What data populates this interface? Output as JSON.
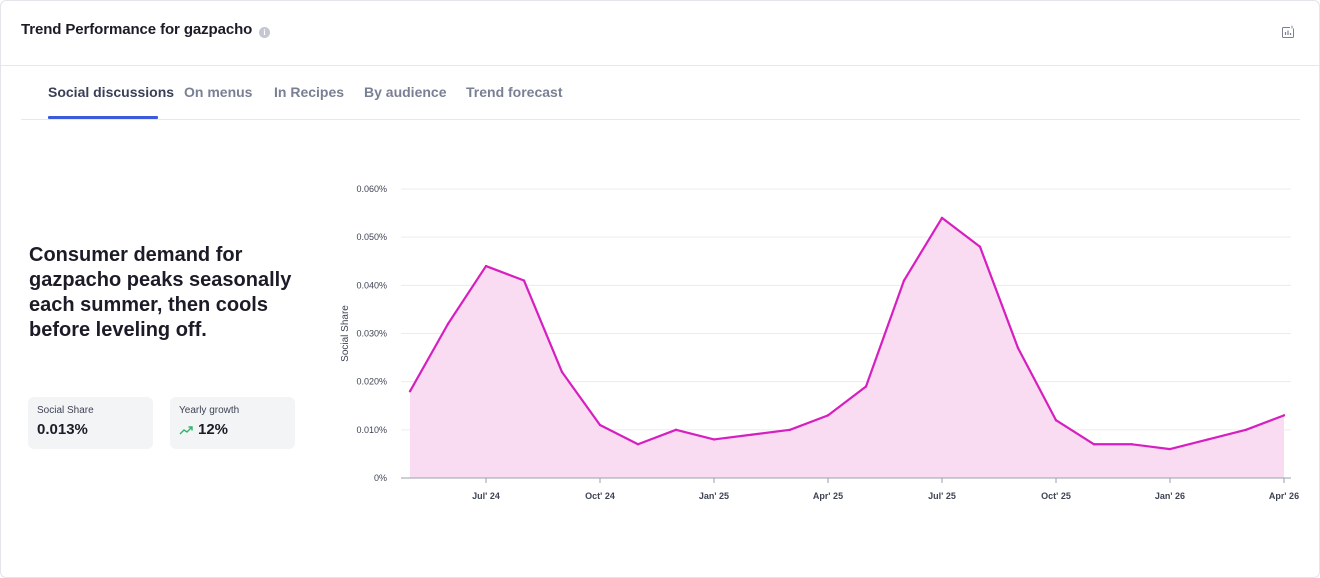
{
  "header": {
    "title": "Trend Performance for gazpacho",
    "info_icon": "info-icon",
    "export_icon": "export-chart-icon"
  },
  "tabs": [
    {
      "label": "Social discussions",
      "active": true
    },
    {
      "label": "On menus",
      "active": false
    },
    {
      "label": "In Recipes",
      "active": false
    },
    {
      "label": "By audience",
      "active": false
    },
    {
      "label": "Trend forecast",
      "active": false
    }
  ],
  "summary": {
    "headline": "Consumer demand for gazpacho peaks seasonally each summer, then cools before leveling off.",
    "stats": [
      {
        "label": "Social Share",
        "value": "0.013%"
      },
      {
        "label": "Yearly growth",
        "value": "12%",
        "trend": "up",
        "trend_color": "#2fb36b"
      }
    ]
  },
  "colors": {
    "accent": "#3b5bdb",
    "line": "#d61fbf",
    "area": "#fadcf2"
  },
  "chart_data": {
    "type": "area",
    "ylabel": "Social Share",
    "ylim": [
      0,
      0.06
    ],
    "yticks": [
      "0%",
      "0.010%",
      "0.020%",
      "0.030%",
      "0.040%",
      "0.050%",
      "0.060%"
    ],
    "xticks": [
      "Jul' 24",
      "Oct' 24",
      "Jan' 25",
      "Apr' 25",
      "Jul' 25",
      "Oct' 25",
      "Jan' 26",
      "Apr' 26"
    ],
    "grid": true,
    "series": [
      {
        "x": [
          "2024-05",
          "2024-06",
          "2024-07",
          "2024-08",
          "2024-09",
          "2024-10",
          "2024-11",
          "2024-12",
          "2025-01",
          "2025-02",
          "2025-03",
          "2025-04",
          "2025-05",
          "2025-06",
          "2025-07",
          "2025-08",
          "2025-09",
          "2025-10",
          "2025-11",
          "2025-12",
          "2026-01",
          "2026-02",
          "2026-03",
          "2026-04"
        ],
        "values": [
          0.018,
          0.032,
          0.044,
          0.041,
          0.022,
          0.011,
          0.007,
          0.01,
          0.008,
          0.009,
          0.01,
          0.013,
          0.019,
          0.041,
          0.054,
          0.048,
          0.027,
          0.012,
          0.007,
          0.007,
          0.006,
          0.008,
          0.01,
          0.013
        ]
      }
    ]
  }
}
